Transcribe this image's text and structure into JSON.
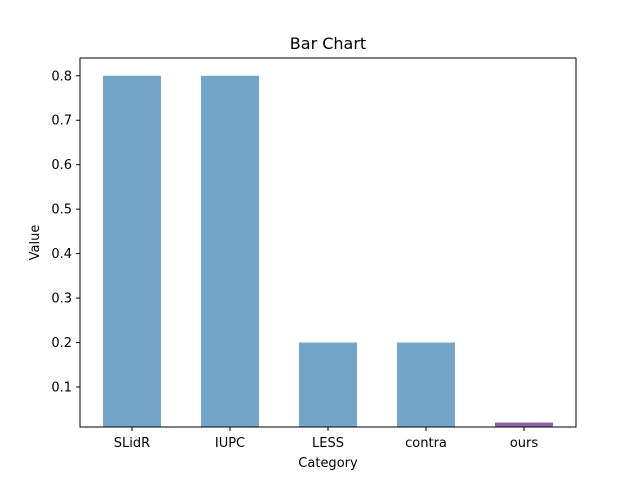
{
  "chart_data": {
    "type": "bar",
    "title": "Bar Chart",
    "xlabel": "Category",
    "ylabel": "Value",
    "categories": [
      "SLidR",
      "IUPC",
      "LESS",
      "contra",
      "ours"
    ],
    "values": [
      0.8,
      0.8,
      0.2,
      0.2,
      0.02
    ],
    "bar_colors": [
      "#74a5c8",
      "#74a5c8",
      "#74a5c8",
      "#74a5c8",
      "#8c63a3"
    ],
    "ylim": [
      0.01,
      0.84
    ],
    "yticks": [
      0.1,
      0.2,
      0.3,
      0.4,
      0.5,
      0.6,
      0.7,
      0.8
    ],
    "ytick_labels": [
      "0.1",
      "0.2",
      "0.3",
      "0.4",
      "0.5",
      "0.6",
      "0.7",
      "0.8"
    ],
    "grid": false,
    "legend": "none"
  }
}
